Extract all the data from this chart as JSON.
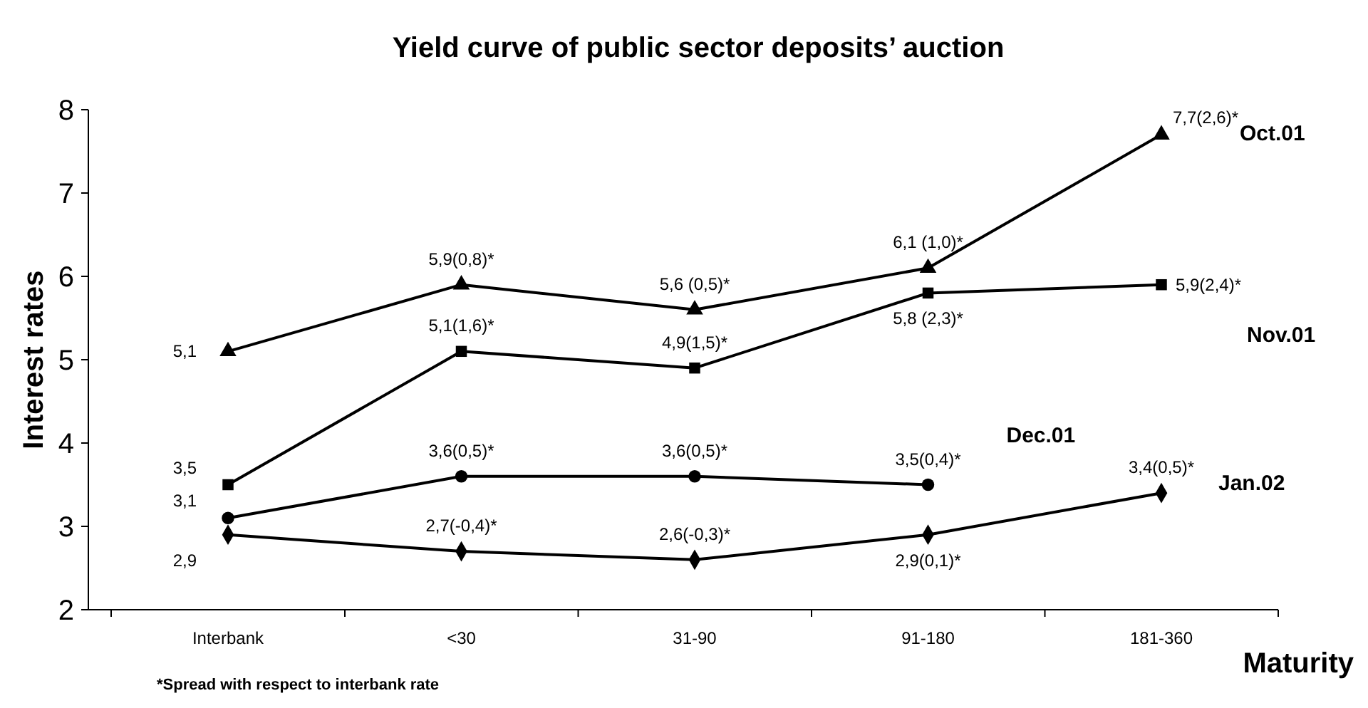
{
  "chart_data": {
    "type": "line",
    "title": "Yield curve of public sector deposits’ auction",
    "xlabel": "Maturity",
    "ylabel": "Interest rates",
    "categories": [
      "Interbank",
      "<30",
      "31-90",
      "91-180",
      "181-360"
    ],
    "ylim": [
      2,
      8
    ],
    "yticks": [
      2,
      3,
      4,
      5,
      6,
      7,
      8
    ],
    "grid": false,
    "line_style": "solid",
    "annotations": [
      "*Spread with respect to interbank rate"
    ],
    "series": [
      {
        "name": "Oct.01",
        "color": "#000000",
        "marker": "triangle",
        "values": [
          5.1,
          5.9,
          5.6,
          6.1,
          7.7
        ],
        "value_labels": [
          "5,1",
          "5,9(0,8)*",
          "5,6 (0,5)*",
          "6,1 (1,0)*",
          "7,7(2,6)*"
        ]
      },
      {
        "name": "Nov.01",
        "color": "#000000",
        "marker": "square",
        "values": [
          3.5,
          5.1,
          4.9,
          5.8,
          5.9
        ],
        "value_labels": [
          "3,5",
          "5,1(1,6)*",
          "4,9(1,5)*",
          "5,8 (2,3)*",
          "5,9(2,4)*"
        ]
      },
      {
        "name": "Dec.01",
        "color": "#000000",
        "marker": "circle",
        "values": [
          3.1,
          3.6,
          3.6,
          3.5,
          null
        ],
        "value_labels": [
          "3,1",
          "3,6(0,5)*",
          "3,6(0,5)*",
          "3,5(0,4)*",
          null
        ]
      },
      {
        "name": "Jan.02",
        "color": "#000000",
        "marker": "diamond",
        "values": [
          2.9,
          2.7,
          2.6,
          2.9,
          3.4
        ],
        "value_labels": [
          "2,9",
          "2,7(-0,4)*",
          "2,6(-0,3)*",
          "2,9(0,1)*",
          "3,4(0,5)*"
        ]
      }
    ]
  }
}
